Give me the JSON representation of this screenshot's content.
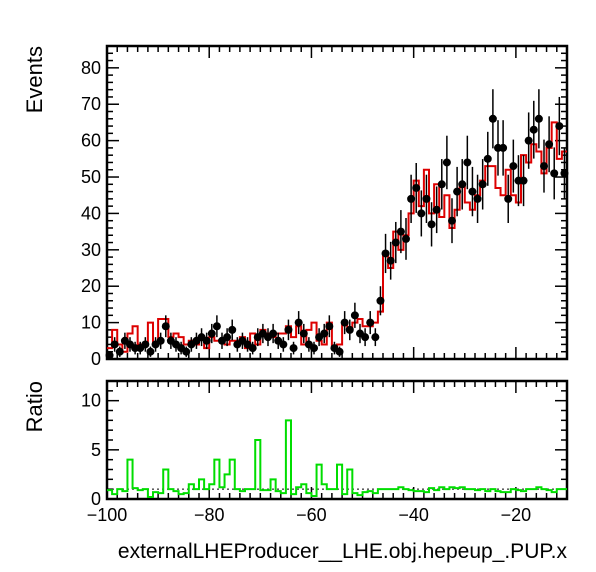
{
  "chart_data": [
    {
      "type": "line",
      "panel": "main",
      "ylabel": "Events",
      "xlim": [
        -100,
        -10
      ],
      "ylim": [
        0,
        86
      ],
      "xticks": [
        -100,
        -80,
        -60,
        -40,
        -20
      ],
      "yticks": [
        0,
        10,
        20,
        30,
        40,
        50,
        60,
        70,
        80
      ],
      "bin_width": 1,
      "x": [
        -99.5,
        -98.5,
        -97.5,
        -96.5,
        -95.5,
        -94.5,
        -93.5,
        -92.5,
        -91.5,
        -90.5,
        -89.5,
        -88.5,
        -87.5,
        -86.5,
        -85.5,
        -84.5,
        -83.5,
        -82.5,
        -81.5,
        -80.5,
        -79.5,
        -78.5,
        -77.5,
        -76.5,
        -75.5,
        -74.5,
        -73.5,
        -72.5,
        -71.5,
        -70.5,
        -69.5,
        -68.5,
        -67.5,
        -66.5,
        -65.5,
        -64.5,
        -63.5,
        -62.5,
        -61.5,
        -60.5,
        -59.5,
        -58.5,
        -57.5,
        -56.5,
        -55.5,
        -54.5,
        -53.5,
        -52.5,
        -51.5,
        -50.5,
        -49.5,
        -48.5,
        -47.5,
        -46.5,
        -45.5,
        -44.5,
        -43.5,
        -42.5,
        -41.5,
        -40.5,
        -39.5,
        -38.5,
        -37.5,
        -36.5,
        -35.5,
        -34.5,
        -33.5,
        -32.5,
        -31.5,
        -30.5,
        -29.5,
        -28.5,
        -27.5,
        -26.5,
        -25.5,
        -24.5,
        -23.5,
        -22.5,
        -21.5,
        -20.5,
        -19.5,
        -18.5,
        -17.5,
        -16.5,
        -15.5,
        -14.5,
        -13.5,
        -12.5,
        -11.5,
        -10.5
      ],
      "series": [
        {
          "kind": "points-with-errors",
          "color": "#000000",
          "values": [
            1,
            4,
            2,
            5,
            4,
            3,
            3,
            4,
            2,
            4,
            5,
            9,
            5,
            4,
            3,
            2,
            4,
            5,
            6,
            5,
            7,
            9,
            5,
            6,
            8,
            4,
            5,
            4,
            3,
            6,
            7,
            6,
            7,
            5,
            4,
            8,
            3,
            10,
            7,
            4,
            3,
            6,
            7,
            9,
            3,
            2,
            10,
            8,
            12,
            7,
            6,
            10,
            6,
            16,
            29,
            27,
            32,
            35,
            33,
            44,
            47,
            40,
            44,
            37,
            41,
            48,
            54,
            38,
            46,
            48,
            54,
            46,
            44,
            48,
            55,
            66,
            58,
            58,
            44,
            53,
            49,
            49,
            60,
            63,
            66,
            53,
            59,
            51,
            64,
            51
          ]
        },
        {
          "kind": "step-histogram",
          "color": "#dd0000",
          "values": [
            3,
            8,
            4,
            2,
            7,
            9,
            4,
            4,
            10,
            4,
            11,
            11,
            6,
            7,
            6,
            4,
            5,
            4,
            6,
            3,
            6,
            5,
            5,
            4,
            5,
            5,
            6,
            3,
            7,
            4,
            8,
            7,
            6,
            7,
            7,
            9,
            6,
            9,
            4,
            8,
            10,
            5,
            4,
            10,
            3,
            4,
            10,
            8,
            10,
            11,
            9,
            9,
            10,
            13,
            29,
            25,
            35,
            30,
            34,
            40,
            49,
            42,
            52,
            40,
            48,
            39,
            45,
            36,
            41,
            48,
            43,
            41,
            45,
            49,
            53,
            53,
            47,
            45,
            52,
            45,
            43,
            56,
            54,
            59,
            57,
            51,
            58,
            65,
            55,
            57
          ]
        }
      ]
    },
    {
      "type": "line",
      "panel": "ratio",
      "ylabel": "Ratio",
      "xlabel": "externalLHEProducer__LHE.obj.hepeup_.PUP.x",
      "xlim": [
        -100,
        -10
      ],
      "ylim": [
        0,
        12
      ],
      "xticks": [
        -100,
        -80,
        -60,
        -40,
        -20
      ],
      "yticks": [
        0,
        5,
        10
      ],
      "reference_line": 1,
      "series": [
        {
          "kind": "step-histogram",
          "color": "#00dd00",
          "values": [
            0.9,
            0.5,
            1.0,
            0.8,
            4.0,
            1.1,
            0.9,
            1.0,
            0.2,
            0.7,
            0.6,
            3.0,
            1.0,
            0.8,
            0.5,
            0.6,
            1.5,
            1.0,
            2.0,
            1.0,
            1.5,
            4.0,
            1.2,
            2.5,
            4.0,
            1.0,
            0.8,
            1.0,
            1.0,
            6.0,
            0.9,
            0.9,
            2.0,
            0.8,
            0.6,
            8.0,
            0.5,
            1.2,
            1.5,
            0.6,
            0.3,
            3.5,
            1.5,
            1.0,
            1.0,
            3.5,
            0.5,
            3.0,
            0.6,
            0.4,
            0.7,
            0.8,
            0.6,
            1.0,
            1.0,
            1.0,
            1.0,
            1.2,
            1.0,
            0.9,
            0.8,
            0.8,
            0.7,
            1.1,
            0.9,
            1.2,
            1.0,
            1.2,
            1.1,
            1.2,
            1.0,
            1.0,
            0.9,
            1.0,
            0.8,
            1.0,
            0.8,
            0.7,
            0.7,
            1.0,
            0.9,
            0.8,
            1.0,
            1.0,
            1.2,
            1.0,
            0.9,
            0.7,
            1.0,
            1.0
          ]
        }
      ]
    }
  ]
}
